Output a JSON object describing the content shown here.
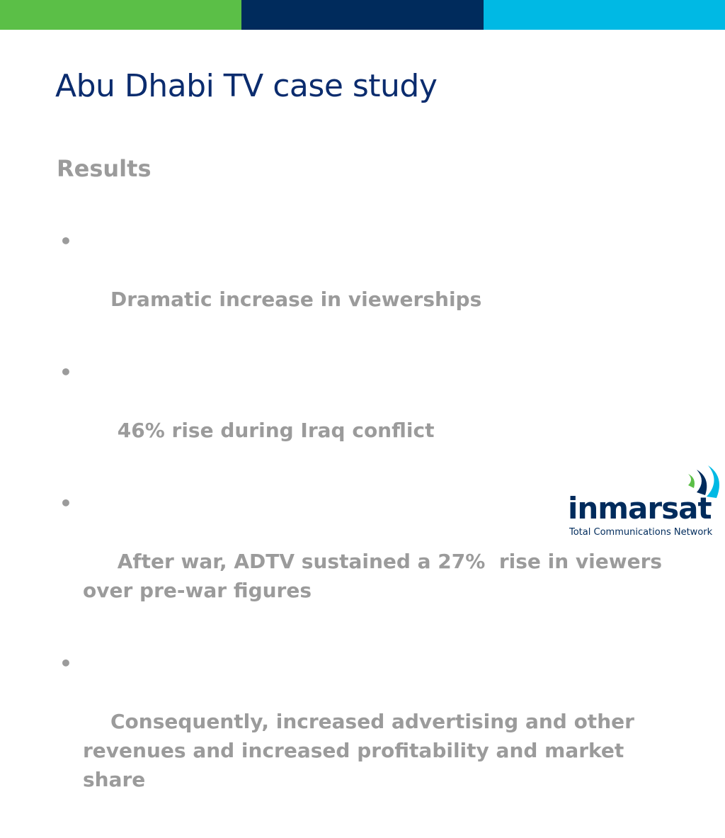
{
  "colors": {
    "bar_green": "#5bbf47",
    "bar_navy": "#002b5c",
    "bar_cyan": "#00b9e4",
    "title": "#0b2c6e",
    "body_text": "#9b9b9b"
  },
  "slide": {
    "title": "Abu Dhabi TV case study",
    "subtitle": "Results",
    "bullets": [
      "Dramatic increase in viewerships",
      " 46% rise during Iraq conflict",
      " After war, ADTV sustained a 27%  rise in viewers over pre-war figures",
      "Consequently, increased advertising and other revenues and increased profitability and market share"
    ],
    "bullet_glyph": "•"
  },
  "logo": {
    "wordmark": "inmarsat",
    "tagline": "Total Communications Network",
    "icon": "signal-waves-icon"
  }
}
